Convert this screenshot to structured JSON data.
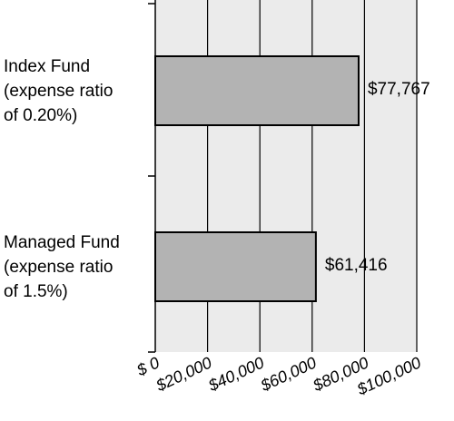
{
  "chart_data": {
    "type": "bar",
    "orientation": "horizontal",
    "title": "",
    "xlabel": "",
    "ylabel": "",
    "categories": [
      {
        "lines": [
          "Index Fund",
          "(expense ratio",
          "of  0.20%)"
        ]
      },
      {
        "lines": [
          "Managed Fund",
          "(expense ratio",
          "of  1.5%)"
        ]
      }
    ],
    "values": [
      77767,
      61416
    ],
    "value_labels": [
      "$77,767",
      "$61,416"
    ],
    "xlim": [
      0,
      100000
    ],
    "xticks": [
      0,
      20000,
      40000,
      60000,
      80000,
      100000
    ],
    "xtick_labels": [
      "$ 0",
      "$20,000",
      "$40,000",
      "$60,000",
      "$80,000",
      "$100,000"
    ],
    "grid": true,
    "legend": "none",
    "colors": {
      "plot_background": "#ebebeb",
      "bar_fill": "#b3b3b3",
      "bar_stroke": "#000000",
      "gridline": "#000000"
    }
  }
}
